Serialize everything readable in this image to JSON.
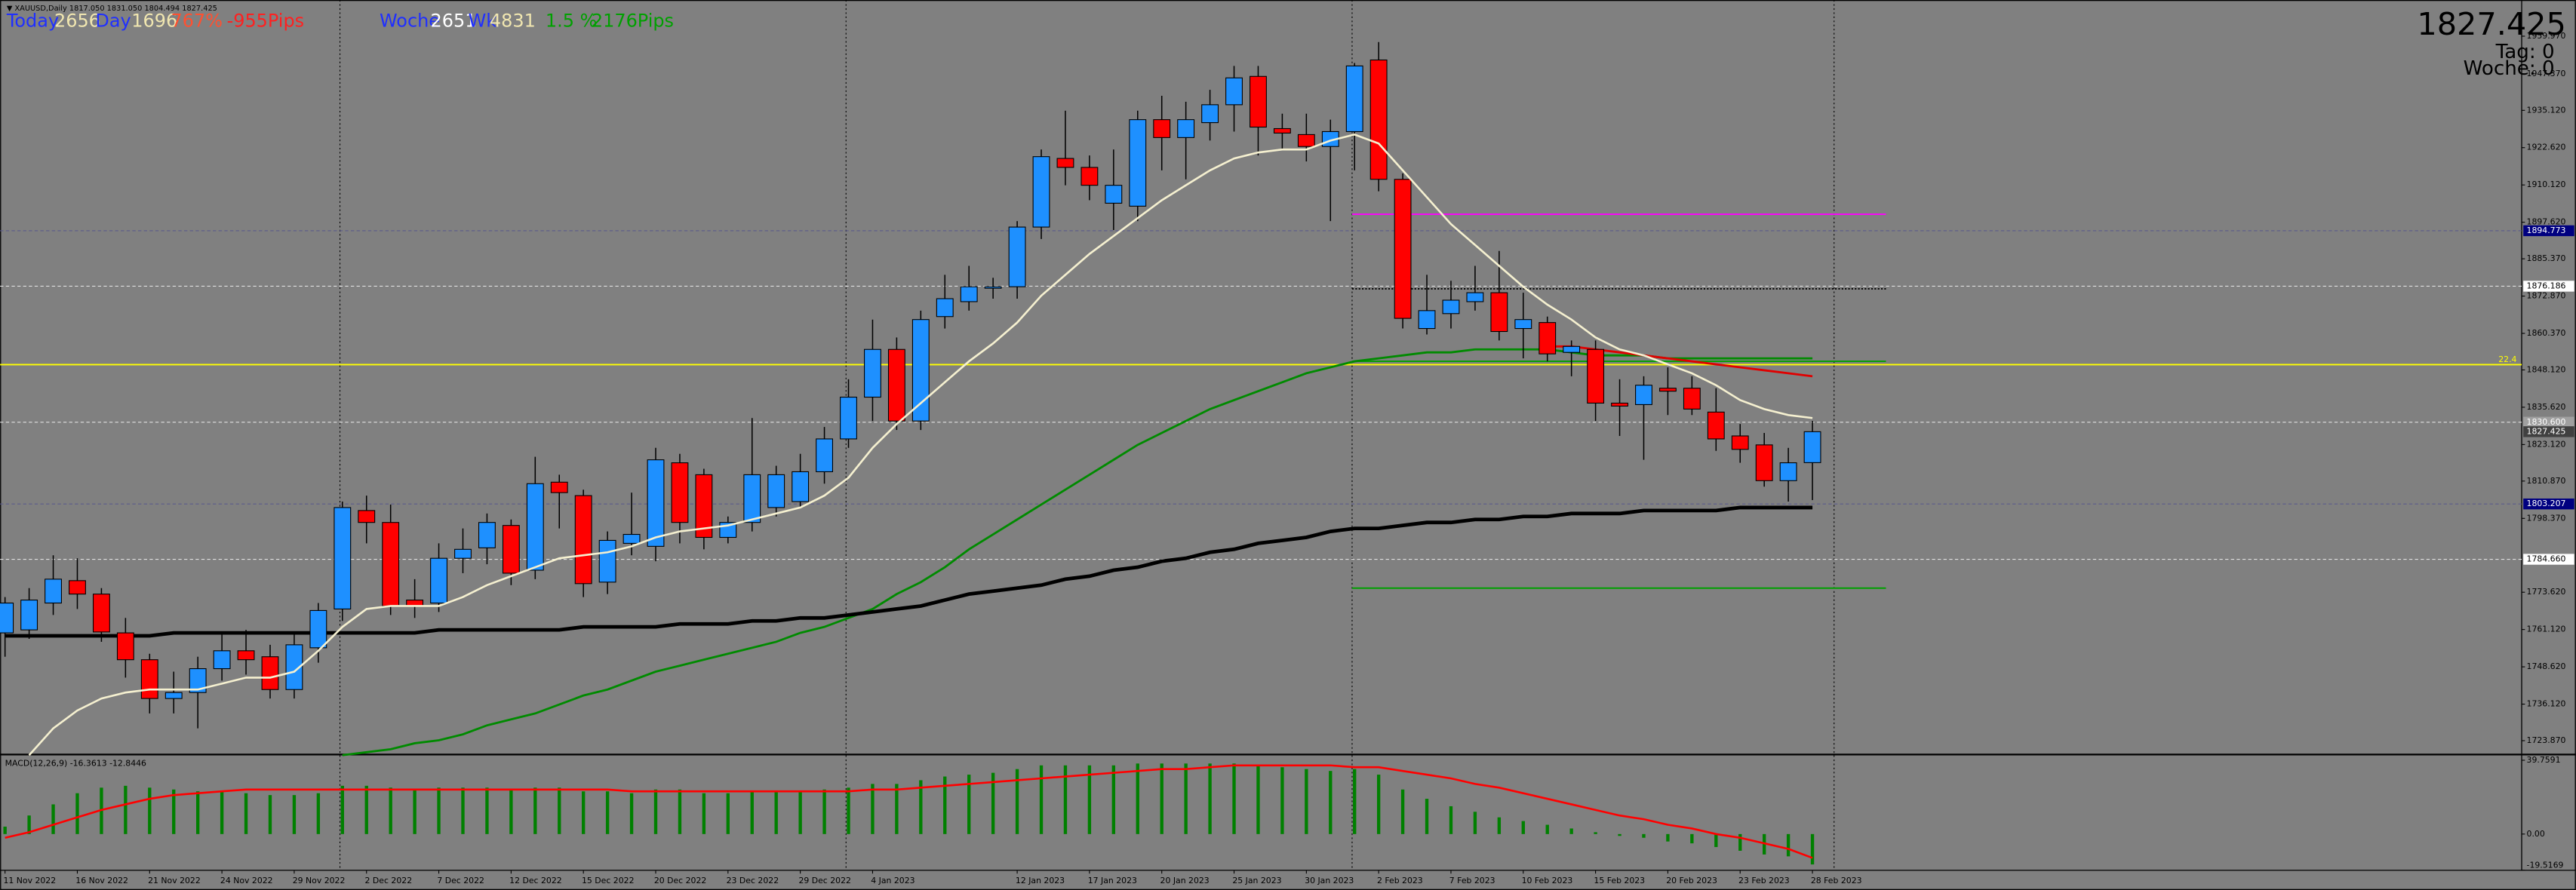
{
  "info": "▼ XAUUSD,Daily  1817.050 1831.050 1804.494 1827.425",
  "stats": [
    {
      "text": "Today",
      "color": "#1f2fff"
    },
    {
      "text": "2656",
      "color": "#f0e6b0"
    },
    {
      "text": "Day",
      "color": "#1f2fff"
    },
    {
      "text": "1696",
      "color": "#f0e6b0"
    },
    {
      "text": "767%",
      "color": "#ff5030"
    },
    {
      "text": "-955Pips",
      "color": "#ff2020"
    },
    {
      "text": "Woche",
      "color": "#1f2fff"
    },
    {
      "text": "2651",
      "color": "#ffffff"
    },
    {
      "text": "Wk",
      "color": "#1f2fff"
    },
    {
      "text": "4831",
      "color": "#f0e6b0"
    },
    {
      "text": "1.5 %",
      "color": "#00a000"
    },
    {
      "text": "2176Pips",
      "color": "#00a000"
    }
  ],
  "corner": {
    "price": "1827.425",
    "day": "Tag: 0",
    "week": "Woche: 0"
  },
  "chart_data": [
    {
      "type": "candlestick",
      "categories": [
        "11 Nov 2022",
        null,
        null,
        "16 Nov 2022",
        null,
        null,
        "21 Nov 2022",
        null,
        null,
        "24 Nov 2022",
        null,
        null,
        "29 Nov 2022",
        null,
        null,
        "2 Dec 2022",
        null,
        null,
        "7 Dec 2022",
        null,
        null,
        "12 Dec 2022",
        null,
        null,
        "15 Dec 2022",
        null,
        null,
        "20 Dec 2022",
        null,
        null,
        "23 Dec 2022",
        null,
        null,
        "29 Dec 2022",
        null,
        null,
        "4 Jan 2023",
        null,
        null,
        null,
        null,
        null,
        "12 Jan 2023",
        null,
        null,
        "17 Jan 2023",
        null,
        null,
        "20 Jan 2023",
        null,
        null,
        "25 Jan 2023",
        null,
        null,
        "30 Jan 2023",
        null,
        null,
        "2 Feb 2023",
        null,
        null,
        "7 Feb 2023",
        null,
        null,
        "10 Feb 2023",
        null,
        null,
        "15 Feb 2023",
        null,
        null,
        "20 Feb 2023",
        null,
        null,
        "23 Feb 2023",
        null,
        null,
        "28 Feb 2023"
      ],
      "open": [
        1760,
        1761,
        1770,
        1777.5,
        1773,
        1760,
        1751,
        1738,
        1740,
        1748,
        1754,
        1752,
        1741,
        1755,
        1768,
        1801,
        1797,
        1771,
        1770,
        1785,
        1788.5,
        1796,
        1781,
        1810.5,
        1806,
        1777,
        1790,
        1789,
        1817,
        1813,
        1792,
        1797,
        1802,
        1804,
        1814,
        1825,
        1839,
        1855,
        1831,
        1866,
        1871,
        1875.5,
        1876,
        1896,
        1919,
        1916,
        1904,
        1903,
        1932,
        1926,
        1931,
        1937,
        1946.5,
        1929,
        1927,
        1923,
        1928,
        1952,
        1912,
        1862,
        1867,
        1871,
        1874,
        1862,
        1864,
        1854,
        1855,
        1837,
        1836.5,
        1842,
        1842,
        1834,
        1826,
        1823,
        1811,
        1817.05
      ],
      "high": [
        1772,
        1775,
        1786,
        1785,
        1775,
        1765,
        1753,
        1747,
        1752,
        1760,
        1761,
        1756,
        1760,
        1770,
        1804,
        1806,
        1803,
        1778,
        1790,
        1795,
        1800,
        1798,
        1819,
        1813,
        1808,
        1794,
        1807,
        1822,
        1820,
        1815,
        1799,
        1832,
        1816,
        1820,
        1829,
        1845,
        1865,
        1859,
        1868,
        1880,
        1883,
        1879,
        1898,
        1922,
        1935,
        1920,
        1922,
        1935,
        1940,
        1938,
        1942,
        1950,
        1950,
        1934,
        1934,
        1932,
        1951,
        1958,
        1914,
        1880,
        1878,
        1883,
        1888,
        1874,
        1866,
        1858,
        1858,
        1845,
        1846,
        1849,
        1846,
        1842,
        1830,
        1827,
        1822,
        1831.05
      ],
      "low": [
        1752,
        1758,
        1766,
        1768,
        1757,
        1745,
        1733,
        1733,
        1728,
        1744,
        1746,
        1738,
        1738,
        1750,
        1764,
        1790,
        1766,
        1765,
        1767,
        1780,
        1783,
        1776,
        1778,
        1795,
        1772,
        1773,
        1786,
        1784,
        1790,
        1788,
        1790,
        1794,
        1799,
        1802,
        1810,
        1822,
        1831,
        1828,
        1828,
        1862,
        1868,
        1872,
        1872,
        1892,
        1910,
        1905,
        1895,
        1898,
        1915,
        1912,
        1925,
        1928,
        1920,
        1922,
        1918,
        1898,
        1915,
        1908,
        1862,
        1860,
        1862,
        1868,
        1858,
        1852,
        1851,
        1846,
        1831,
        1826,
        1818,
        1833,
        1833,
        1821,
        1817,
        1809,
        1804,
        1804.494
      ],
      "close": [
        1770,
        1771,
        1778,
        1773,
        1760.3,
        1751,
        1738,
        1740,
        1748,
        1754,
        1751,
        1741,
        1756,
        1767.5,
        1802,
        1797,
        1769,
        1769,
        1785,
        1788,
        1797,
        1780,
        1810,
        1807,
        1776.5,
        1791,
        1793,
        1818,
        1797,
        1792,
        1797,
        1813,
        1813,
        1814,
        1825,
        1839,
        1855,
        1831,
        1865,
        1872,
        1876,
        1876,
        1896,
        1919.6,
        1916,
        1910,
        1910,
        1932,
        1926,
        1932,
        1937,
        1946,
        1929.5,
        1927.5,
        1923,
        1928,
        1950,
        1912,
        1865.4,
        1868,
        1871.5,
        1874,
        1861,
        1865,
        1853.5,
        1856,
        1837,
        1836,
        1843,
        1841,
        1835,
        1825,
        1821.5,
        1811,
        1817,
        1827.425
      ],
      "up_color": "#1e90ff",
      "down_color": "#ff0000",
      "series": [
        {
          "color": "#f5f0d0",
          "width": 1.2,
          "values": [
            null,
            1719,
            1728,
            1734,
            1738,
            1740,
            1741,
            1741,
            1741,
            1743,
            1745,
            1745,
            1747,
            1754,
            1762,
            1768,
            1769,
            1769,
            1769,
            1772,
            1776,
            1779,
            1782,
            1785,
            1786,
            1787,
            1789,
            1792,
            1794,
            1795,
            1796,
            1798,
            1800,
            1802,
            1806,
            1812,
            1822,
            1830,
            1837,
            1844,
            1851,
            1857,
            1864,
            1873,
            1880,
            1887,
            1893,
            1899,
            1905,
            1910,
            1915,
            1919,
            1921,
            1922,
            1922,
            1925,
            1927,
            1924,
            1915,
            1906,
            1897,
            1890,
            1883,
            1876,
            1870,
            1865,
            1859,
            1855,
            1853,
            1850,
            1847,
            1843,
            1838,
            1835,
            1833,
            1832
          ]
        },
        {
          "color": "#008a00",
          "width": 1.3,
          "values": [
            null,
            null,
            null,
            null,
            null,
            null,
            null,
            null,
            null,
            null,
            null,
            null,
            null,
            null,
            1719,
            1720,
            1721,
            1723,
            1724,
            1726,
            1729,
            1731,
            1733,
            1736,
            1739,
            1741,
            1744,
            1747,
            1749,
            1751,
            1753,
            1755,
            1757,
            1760,
            1762,
            1765,
            1768,
            1773,
            1777,
            1782,
            1788,
            1793,
            1798,
            1803,
            1808,
            1813,
            1818,
            1823,
            1827,
            1831,
            1835,
            1838,
            1841,
            1844,
            1847,
            1849,
            1851,
            1852,
            1853,
            1854,
            1854,
            1855,
            1855,
            1855,
            1855,
            1854,
            1853,
            1853,
            1853,
            1852,
            1852,
            1852,
            1852,
            1852,
            1852,
            1852
          ]
        },
        {
          "color": "#000000",
          "width": 2.2,
          "values": [
            1759,
            1759,
            1759,
            1759,
            1759,
            1759,
            1759,
            1760,
            1760,
            1760,
            1760,
            1760,
            1760,
            1760,
            1760,
            1760,
            1760,
            1760,
            1761,
            1761,
            1761,
            1761,
            1761,
            1761,
            1762,
            1762,
            1762,
            1762,
            1763,
            1763,
            1763,
            1764,
            1764,
            1765,
            1765,
            1766,
            1767,
            1768,
            1769,
            1771,
            1773,
            1774,
            1775,
            1776,
            1778,
            1779,
            1781,
            1782,
            1784,
            1785,
            1787,
            1788,
            1790,
            1791,
            1792,
            1794,
            1795,
            1795,
            1796,
            1797,
            1797,
            1798,
            1798,
            1799,
            1799,
            1800,
            1800,
            1800,
            1801,
            1801,
            1801,
            1801,
            1802,
            1802,
            1802,
            1802
          ]
        },
        {
          "color": "#e00000",
          "width": 1.3,
          "values": [
            null,
            null,
            null,
            null,
            null,
            null,
            null,
            null,
            null,
            null,
            null,
            null,
            null,
            null,
            null,
            null,
            null,
            null,
            null,
            null,
            null,
            null,
            null,
            null,
            null,
            null,
            null,
            null,
            null,
            null,
            null,
            null,
            null,
            null,
            null,
            null,
            null,
            null,
            null,
            null,
            null,
            null,
            null,
            null,
            null,
            null,
            null,
            null,
            null,
            null,
            null,
            null,
            null,
            null,
            null,
            null,
            null,
            null,
            null,
            null,
            null,
            null,
            null,
            null,
            1856,
            1856,
            1855,
            1854,
            1853,
            1852,
            1851,
            1850,
            1849,
            1848,
            1847,
            1846
          ]
        }
      ],
      "levels": [
        {
          "value": 1900.3,
          "color": "#ff00ff",
          "span": "partial"
        },
        {
          "value": 1875.3,
          "color": "#000000",
          "span": "partial",
          "dash": "1,1"
        },
        {
          "value": 1849.9,
          "color": "#ffff00",
          "span": "full",
          "label": "22.4"
        },
        {
          "value": 1851,
          "color": "#00a000",
          "span": "partial"
        },
        {
          "value": 1775,
          "color": "#00a000",
          "span": "partial"
        }
      ],
      "markers": [
        {
          "value": 1894.773,
          "bg": "#000080",
          "fg": "#ffffff",
          "line": "#5a5a8a"
        },
        {
          "value": 1876.186,
          "bg": "#ffffff",
          "fg": "#000000",
          "line": "#e0e0e0"
        },
        {
          "value": 1830.6,
          "label": "1830.600",
          "bg": "#a0a0a0",
          "fg": "#ffffff",
          "line": "#e0e0e0"
        },
        {
          "value": 1827.425,
          "bg": "#404040",
          "fg": "#ffffff",
          "line": null
        },
        {
          "value": 1803.207,
          "bg": "#000080",
          "fg": "#ffffff",
          "line": "#5a5a8a"
        },
        {
          "value": 1784.66,
          "label": "1784.660",
          "bg": "#ffffff",
          "fg": "#000000",
          "line": "#e0e0e0"
        }
      ],
      "ylim": [
        1719.5,
        1972.1
      ],
      "yticks": [
        {
          "value": 1959.97,
          "label": "1959.970"
        },
        {
          "value": 1947.37,
          "label": "1947.370"
        },
        {
          "value": 1935.12,
          "label": "1935.120"
        },
        {
          "value": 1922.62,
          "label": "1922.620"
        },
        {
          "value": 1910.12,
          "label": "1910.120"
        },
        {
          "value": 1897.62,
          "label": "1897.620"
        },
        {
          "value": 1885.37,
          "label": "1885.370"
        },
        {
          "value": 1872.87,
          "label": "1872.870"
        },
        {
          "value": 1860.37,
          "label": "1860.370"
        },
        {
          "value": 1848.12,
          "label": "1848.120"
        },
        {
          "value": 1835.62,
          "label": "1835.620"
        },
        {
          "value": 1823.12,
          "label": "1823.120"
        },
        {
          "value": 1810.87,
          "label": "1810.870"
        },
        {
          "value": 1798.37,
          "label": "1798.370"
        },
        {
          "value": 1773.62,
          "label": "1773.620"
        },
        {
          "value": 1761.12,
          "label": "1761.120"
        },
        {
          "value": 1748.62,
          "label": "1748.620"
        },
        {
          "value": 1736.12,
          "label": "1736.120"
        },
        {
          "value": 1723.87,
          "label": "1723.870"
        }
      ]
    },
    {
      "type": "macd",
      "title": "MACD(12,26,9) -16.3613 -12.8446",
      "series": [
        {
          "color": "#008000",
          "kind": "histogram",
          "values": [
            4,
            10,
            16,
            22,
            25,
            26,
            25,
            24,
            23,
            23,
            22,
            21,
            21,
            22,
            26,
            26,
            25,
            24,
            25,
            25,
            25,
            24,
            25,
            25,
            23,
            23,
            22,
            24,
            24,
            22,
            22,
            23,
            23,
            23,
            24,
            25,
            27,
            27,
            29,
            31,
            32,
            33,
            35,
            37,
            37,
            37,
            37,
            38,
            38,
            38,
            38,
            38,
            37,
            36,
            35,
            34,
            35,
            32,
            24,
            19,
            15,
            12,
            9,
            7,
            5,
            3,
            1,
            -1,
            -2,
            -4,
            -5,
            -7,
            -9,
            -11,
            -12,
            -16.3613
          ]
        },
        {
          "color": "#ff0000",
          "kind": "line",
          "values": [
            -2,
            1,
            5,
            9,
            13,
            16,
            19,
            21,
            22,
            23,
            24,
            24,
            24,
            24,
            24,
            24,
            24,
            24,
            24,
            24,
            24,
            24,
            24,
            24,
            24,
            24,
            23,
            23,
            23,
            23,
            23,
            23,
            23,
            23,
            23,
            23,
            24,
            24,
            25,
            26,
            27,
            28,
            29,
            30,
            31,
            32,
            33,
            34,
            35,
            35,
            36,
            37,
            37,
            37,
            37,
            37,
            36,
            36,
            34,
            32,
            30,
            27,
            25,
            22,
            19,
            16,
            13,
            10,
            8,
            5,
            3,
            0,
            -2,
            -5,
            -8,
            -12.8446
          ]
        }
      ],
      "ylim": [
        -19.52,
        42.4
      ],
      "yticks": [
        39.7591,
        {
          "value": 0,
          "label": "0.00"
        },
        -19.5169
      ]
    }
  ]
}
